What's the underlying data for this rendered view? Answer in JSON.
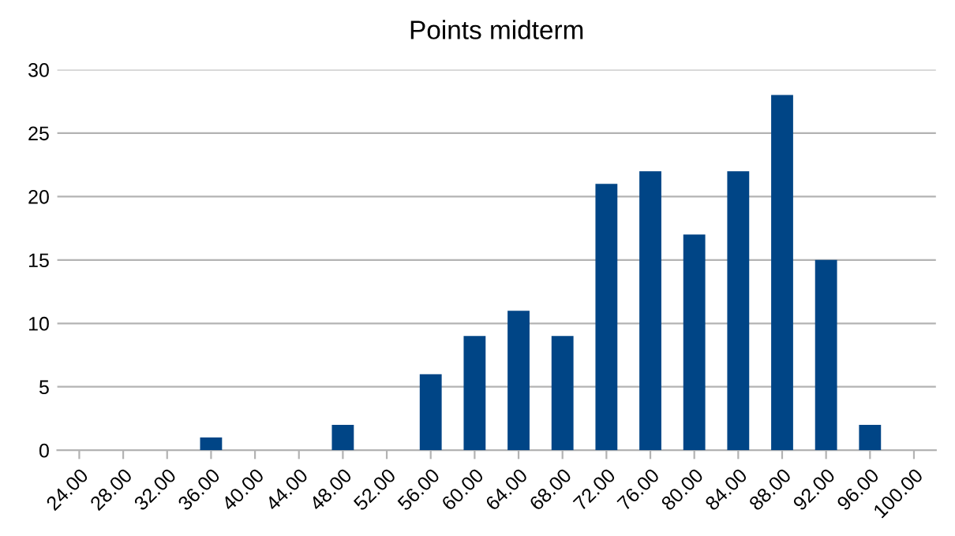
{
  "chart_data": {
    "type": "bar",
    "title": "Points midterm",
    "categories": [
      "24.00",
      "28.00",
      "32.00",
      "36.00",
      "40.00",
      "44.00",
      "48.00",
      "52.00",
      "56.00",
      "60.00",
      "64.00",
      "68.00",
      "72.00",
      "76.00",
      "80.00",
      "84.00",
      "88.00",
      "92.00",
      "96.00",
      "100.00"
    ],
    "values": [
      0,
      0,
      0,
      1,
      0,
      0,
      2,
      0,
      6,
      9,
      11,
      9,
      21,
      22,
      17,
      22,
      28,
      15,
      2,
      0
    ],
    "color": "#004586",
    "ylim": [
      0,
      30
    ],
    "yticks": [
      0,
      5,
      10,
      15,
      20,
      25,
      30
    ],
    "grid": "y",
    "legend": false
  }
}
